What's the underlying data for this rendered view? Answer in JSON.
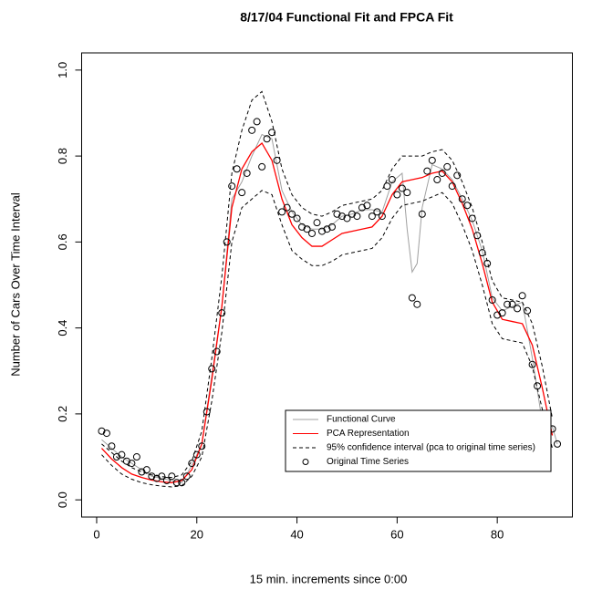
{
  "chart_data": {
    "type": "line",
    "title": "8/17/04 Functional Fit and FPCA Fit",
    "x_label": "15 min. increments since 0:00",
    "y_label": "Number of Cars Over Time Interval",
    "xlim": [
      -3,
      95
    ],
    "ylim": [
      -0.04,
      1.04
    ],
    "xticks": [
      0,
      20,
      40,
      60,
      80
    ],
    "yticks": [
      {
        "value": 0,
        "label": "0.0"
      },
      0.2,
      0.4,
      0.6,
      0.8,
      {
        "value": 1,
        "label": "1.0"
      }
    ],
    "series": [
      {
        "name": "Functional Curve",
        "color": "#a0a0a0",
        "style": "line",
        "x": [
          1,
          3,
          5,
          7,
          9,
          11,
          13,
          15,
          17,
          19,
          21,
          23,
          25,
          27,
          29,
          31,
          33,
          35,
          37,
          39,
          41,
          43,
          45,
          47,
          49,
          51,
          53,
          55,
          57,
          59,
          61,
          62,
          63,
          64,
          65,
          67,
          69,
          71,
          73,
          75,
          77,
          79,
          81,
          83,
          85,
          87,
          89,
          91,
          92
        ],
        "values": [
          0.14,
          0.12,
          0.1,
          0.085,
          0.07,
          0.055,
          0.05,
          0.045,
          0.04,
          0.08,
          0.13,
          0.29,
          0.45,
          0.7,
          0.74,
          0.8,
          0.85,
          0.84,
          0.72,
          0.67,
          0.64,
          0.63,
          0.63,
          0.64,
          0.66,
          0.665,
          0.675,
          0.675,
          0.67,
          0.74,
          0.76,
          0.63,
          0.53,
          0.55,
          0.68,
          0.78,
          0.77,
          0.745,
          0.7,
          0.65,
          0.58,
          0.47,
          0.44,
          0.45,
          0.46,
          0.33,
          0.18,
          0.17,
          0.13
        ]
      },
      {
        "name": "PCA Representation",
        "color": "#ff0000",
        "style": "line",
        "x": [
          1,
          3,
          5,
          7,
          9,
          11,
          13,
          15,
          17,
          19,
          21,
          23,
          25,
          27,
          29,
          31,
          33,
          35,
          37,
          39,
          41,
          43,
          45,
          47,
          49,
          51,
          53,
          55,
          57,
          59,
          61,
          63,
          65,
          67,
          69,
          71,
          73,
          75,
          77,
          79,
          81,
          83,
          85,
          87,
          89,
          91
        ],
        "values": [
          0.12,
          0.095,
          0.075,
          0.06,
          0.052,
          0.046,
          0.042,
          0.04,
          0.045,
          0.07,
          0.13,
          0.28,
          0.45,
          0.68,
          0.77,
          0.81,
          0.83,
          0.79,
          0.7,
          0.64,
          0.61,
          0.59,
          0.59,
          0.605,
          0.62,
          0.625,
          0.63,
          0.635,
          0.66,
          0.71,
          0.74,
          0.745,
          0.75,
          0.76,
          0.765,
          0.74,
          0.69,
          0.63,
          0.55,
          0.46,
          0.42,
          0.415,
          0.41,
          0.36,
          0.26,
          0.15
        ]
      },
      {
        "name": "95% confidence interval (pca to original time series)",
        "color": "#000000",
        "style": "dashed",
        "x": [
          1,
          3,
          5,
          7,
          9,
          11,
          13,
          15,
          17,
          19,
          21,
          23,
          25,
          27,
          29,
          31,
          33,
          35,
          37,
          39,
          41,
          43,
          45,
          47,
          49,
          51,
          53,
          55,
          57,
          59,
          61,
          63,
          65,
          67,
          69,
          71,
          73,
          75,
          77,
          79,
          81,
          83,
          85,
          87,
          89,
          91
        ],
        "upper": [
          0.13,
          0.11,
          0.09,
          0.075,
          0.065,
          0.058,
          0.054,
          0.052,
          0.058,
          0.09,
          0.16,
          0.33,
          0.52,
          0.76,
          0.86,
          0.93,
          0.95,
          0.88,
          0.77,
          0.71,
          0.68,
          0.665,
          0.66,
          0.67,
          0.685,
          0.69,
          0.695,
          0.7,
          0.72,
          0.77,
          0.8,
          0.8,
          0.8,
          0.81,
          0.815,
          0.79,
          0.74,
          0.68,
          0.6,
          0.51,
          0.47,
          0.465,
          0.46,
          0.41,
          0.31,
          0.19
        ],
        "lower": [
          0.105,
          0.08,
          0.06,
          0.048,
          0.04,
          0.035,
          0.032,
          0.03,
          0.033,
          0.055,
          0.1,
          0.23,
          0.39,
          0.6,
          0.68,
          0.7,
          0.72,
          0.71,
          0.64,
          0.58,
          0.56,
          0.545,
          0.545,
          0.555,
          0.57,
          0.575,
          0.58,
          0.585,
          0.61,
          0.655,
          0.685,
          0.69,
          0.695,
          0.705,
          0.715,
          0.69,
          0.64,
          0.58,
          0.5,
          0.41,
          0.375,
          0.37,
          0.365,
          0.31,
          0.21,
          0.12
        ]
      },
      {
        "name": "Original Time Series",
        "color": "#000000",
        "style": "points",
        "x": [
          1,
          2,
          3,
          4,
          5,
          6,
          7,
          8,
          9,
          10,
          11,
          12,
          13,
          14,
          15,
          16,
          17,
          18,
          19,
          20,
          21,
          22,
          23,
          24,
          25,
          26,
          27,
          28,
          29,
          30,
          31,
          32,
          33,
          34,
          35,
          36,
          37,
          38,
          39,
          40,
          41,
          42,
          43,
          44,
          45,
          46,
          47,
          48,
          49,
          50,
          51,
          52,
          53,
          54,
          55,
          56,
          57,
          58,
          59,
          60,
          61,
          62,
          63,
          64,
          65,
          66,
          67,
          68,
          69,
          70,
          71,
          72,
          73,
          74,
          75,
          76,
          77,
          78,
          79,
          80,
          81,
          82,
          83,
          84,
          85,
          86,
          87,
          88,
          89,
          90,
          91,
          92
        ],
        "values": [
          0.16,
          0.155,
          0.125,
          0.1,
          0.105,
          0.09,
          0.085,
          0.1,
          0.065,
          0.07,
          0.055,
          0.05,
          0.055,
          0.045,
          0.055,
          0.04,
          0.04,
          0.055,
          0.085,
          0.105,
          0.125,
          0.205,
          0.305,
          0.345,
          0.435,
          0.6,
          0.73,
          0.77,
          0.715,
          0.76,
          0.86,
          0.88,
          0.775,
          0.84,
          0.855,
          0.79,
          0.67,
          0.68,
          0.665,
          0.655,
          0.635,
          0.63,
          0.62,
          0.645,
          0.625,
          0.63,
          0.635,
          0.665,
          0.66,
          0.655,
          0.665,
          0.66,
          0.68,
          0.685,
          0.66,
          0.67,
          0.66,
          0.73,
          0.745,
          0.71,
          0.725,
          0.715,
          0.47,
          0.455,
          0.665,
          0.765,
          0.79,
          0.745,
          0.76,
          0.775,
          0.73,
          0.755,
          0.7,
          0.685,
          0.655,
          0.615,
          0.575,
          0.55,
          0.465,
          0.43,
          0.435,
          0.455,
          0.455,
          0.445,
          0.475,
          0.44,
          0.315,
          0.265,
          0.19,
          0.195,
          0.165,
          0.13
        ]
      }
    ]
  }
}
